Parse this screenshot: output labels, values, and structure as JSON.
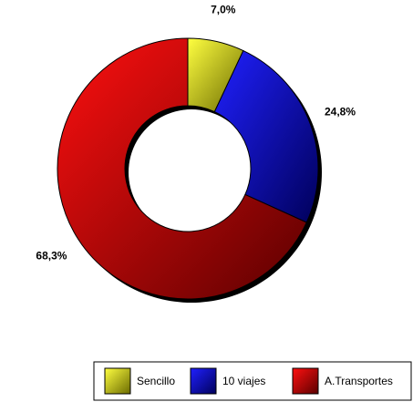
{
  "chart_data": {
    "type": "donut",
    "categories": [
      "Sencillo",
      "10 viajes",
      "A.Transportes"
    ],
    "values": [
      7.0,
      24.8,
      68.3
    ],
    "value_labels": [
      "7,0%",
      "24,8%",
      "68,3%"
    ],
    "colors": [
      "#ffff00",
      "#0000ff",
      "#ff0000"
    ],
    "legend": "bottom-right"
  }
}
